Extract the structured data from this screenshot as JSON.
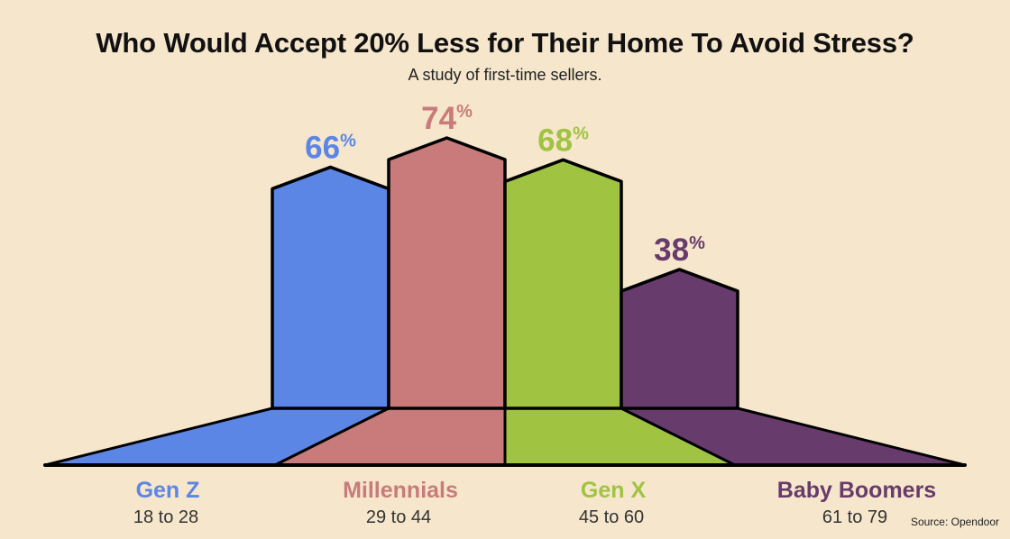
{
  "chart_data": {
    "type": "bar",
    "title": "Who Would Accept 20% Less for Their Home To Avoid Stress?",
    "subtitle": "A study of first-time sellers.",
    "categories": [
      "Gen Z",
      "Millennials",
      "Gen X",
      "Baby Boomers"
    ],
    "age_ranges": [
      "18 to 28",
      "29 to 44",
      "45 to 60",
      "61 to 79"
    ],
    "values": [
      66,
      74,
      68,
      38
    ],
    "unit": "%",
    "colors": [
      "#5b86e5",
      "#c87b7a",
      "#a0c342",
      "#673b6b"
    ],
    "label_colors": [
      "#5b86e5",
      "#c87b7a",
      "#a0c342",
      "#673b6b"
    ],
    "ylim": [
      0,
      100
    ],
    "legend": "none",
    "grid": false
  },
  "source": "Source: Opendoor"
}
